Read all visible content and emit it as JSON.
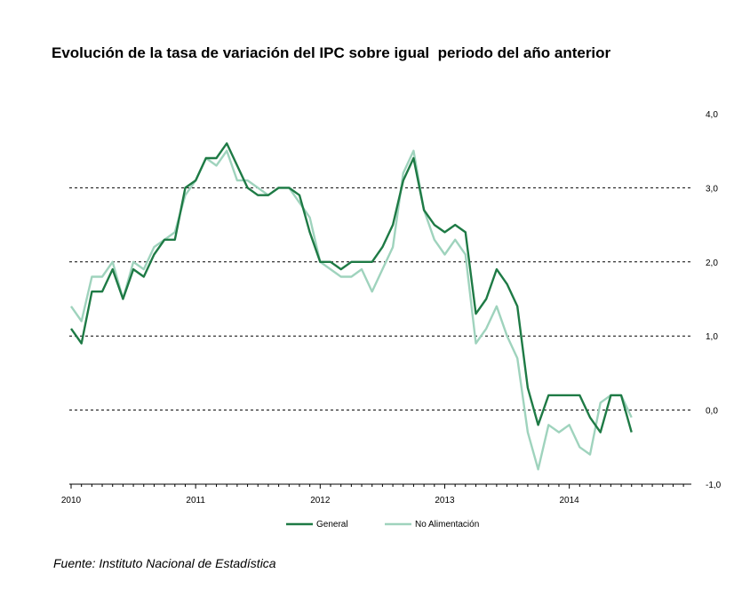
{
  "title": "Evolución de la tasa de variación del IPC sobre igual  periodo del año anterior",
  "source": "Fuente: Instituto Nacional de Estadística",
  "colors": {
    "general": "#1e7a45",
    "no_alimentacion": "#9fd3bd",
    "grid": "#000000"
  },
  "chart_data": {
    "type": "line",
    "title": "Evolución de la tasa de variación del IPC sobre igual  periodo del año anterior",
    "xlabel": "",
    "ylabel": "",
    "ylim": [
      -1.0,
      4.0
    ],
    "y_ticks": [
      "4,0",
      "3,0",
      "2,0",
      "1,0",
      "0,0",
      "-1,0"
    ],
    "y_tick_values": [
      4.0,
      3.0,
      2.0,
      1.0,
      0.0,
      -1.0
    ],
    "x_tick_labels": [
      "2010",
      "2011",
      "2012",
      "2013",
      "2014"
    ],
    "grid": "horizontal dashed at 0, 1, 2, 3",
    "legend_placement": "bottom-center",
    "x": [
      "2010-01",
      "2010-02",
      "2010-03",
      "2010-04",
      "2010-05",
      "2010-06",
      "2010-07",
      "2010-08",
      "2010-09",
      "2010-10",
      "2010-11",
      "2010-12",
      "2011-01",
      "2011-02",
      "2011-03",
      "2011-04",
      "2011-05",
      "2011-06",
      "2011-07",
      "2011-08",
      "2011-09",
      "2011-10",
      "2011-11",
      "2011-12",
      "2012-01",
      "2012-02",
      "2012-03",
      "2012-04",
      "2012-05",
      "2012-06",
      "2012-07",
      "2012-08",
      "2012-09",
      "2012-10",
      "2012-11",
      "2012-12",
      "2013-01",
      "2013-02",
      "2013-03",
      "2013-04",
      "2013-05",
      "2013-06",
      "2013-07",
      "2013-08",
      "2013-09",
      "2013-10",
      "2013-11",
      "2013-12",
      "2014-01",
      "2014-02",
      "2014-03",
      "2014-04",
      "2014-05",
      "2014-06",
      "2014-07"
    ],
    "series": [
      {
        "name": "General",
        "values": [
          1.1,
          0.9,
          1.6,
          1.6,
          1.9,
          1.5,
          1.9,
          1.8,
          2.1,
          2.3,
          2.3,
          3.0,
          3.1,
          3.4,
          3.4,
          3.6,
          3.3,
          3.0,
          2.9,
          2.9,
          3.0,
          3.0,
          2.9,
          2.4,
          2.0,
          2.0,
          1.9,
          2.0,
          2.0,
          2.0,
          2.2,
          2.5,
          3.1,
          3.4,
          2.7,
          2.5,
          2.4,
          2.5,
          2.4,
          1.3,
          1.5,
          1.9,
          1.7,
          1.4,
          0.3,
          -0.2,
          0.2,
          0.2,
          0.2,
          0.2,
          -0.1,
          -0.3,
          0.2,
          0.2,
          -0.3
        ]
      },
      {
        "name": "No Alimentación",
        "values": [
          1.4,
          1.2,
          1.8,
          1.8,
          2.0,
          1.5,
          2.0,
          1.9,
          2.2,
          2.3,
          2.4,
          2.9,
          3.1,
          3.4,
          3.3,
          3.5,
          3.1,
          3.1,
          3.0,
          2.9,
          3.0,
          3.0,
          2.8,
          2.6,
          2.0,
          1.9,
          1.8,
          1.8,
          1.9,
          1.6,
          1.9,
          2.2,
          3.2,
          3.5,
          2.7,
          2.3,
          2.1,
          2.3,
          2.1,
          0.9,
          1.1,
          1.4,
          1.0,
          0.7,
          -0.3,
          -0.8,
          -0.2,
          -0.3,
          -0.2,
          -0.5,
          -0.6,
          0.1,
          0.2,
          0.2,
          -0.1
        ]
      }
    ]
  }
}
